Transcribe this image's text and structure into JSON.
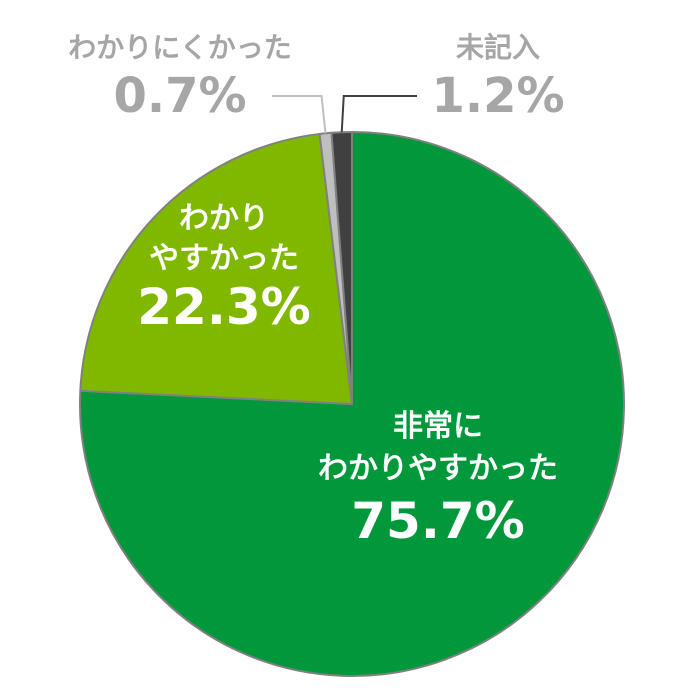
{
  "chart_data": {
    "type": "pie",
    "slices": [
      {
        "label_lines": [
          "非常に",
          "わかりやすかった"
        ],
        "value_text": "75.7%",
        "value": 75.7,
        "color": "#00983a",
        "text_color": "#ffffff",
        "placement": "inside"
      },
      {
        "label_lines": [
          "わかり",
          "やすかった"
        ],
        "value_text": "22.3%",
        "value": 22.3,
        "color": "#80b800",
        "text_color": "#ffffff",
        "placement": "inside"
      },
      {
        "label_lines": [
          "わかりにくかった"
        ],
        "value_text": "0.7%",
        "value": 0.7,
        "color": "#bfbfbf",
        "text_color": "#a6a6a6",
        "placement": "outside-left"
      },
      {
        "label_lines": [
          "未記入"
        ],
        "value_text": "1.2%",
        "value": 1.2,
        "color": "#404040",
        "text_color": "#a6a6a6",
        "placement": "outside-right"
      }
    ],
    "start": "12 o'clock",
    "direction": "clockwise",
    "slice_border_color": "#808080"
  }
}
